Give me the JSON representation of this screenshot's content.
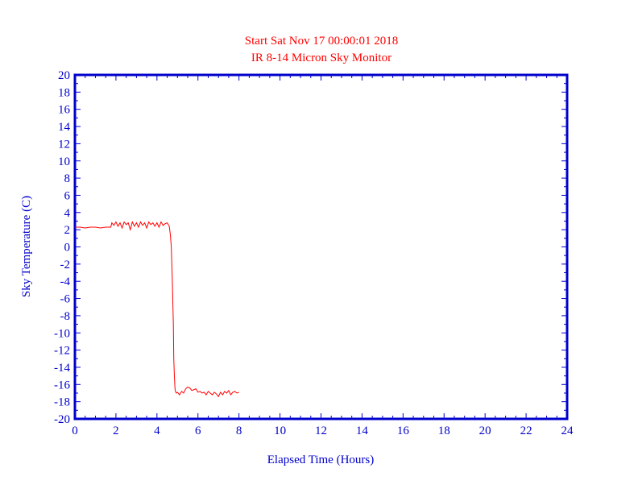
{
  "colors": {
    "axis": "#0000cc",
    "series": "#ff0000",
    "background": "#ffffff"
  },
  "chart_data": {
    "type": "line",
    "title": "Start Sat Nov 17 00:00:01 2018",
    "subtitle": "IR 8-14 Micron Sky Monitor",
    "xlabel": "Elapsed Time (Hours)",
    "ylabel": "Sky Temperature (C)",
    "xlim": [
      0,
      24
    ],
    "ylim": [
      -20,
      20
    ],
    "xticks": [
      0,
      2,
      4,
      6,
      8,
      10,
      12,
      14,
      16,
      18,
      20,
      22,
      24
    ],
    "yticks": [
      20,
      18,
      16,
      14,
      12,
      10,
      8,
      6,
      4,
      2,
      0,
      -2,
      -4,
      -6,
      -8,
      -10,
      -12,
      -14,
      -16,
      -18,
      -20
    ],
    "grid": false,
    "series": [
      {
        "x": [
          0,
          0.25,
          0.5,
          0.75,
          1.0,
          1.25,
          1.5,
          1.75,
          1.8,
          1.9,
          2.0,
          2.1,
          2.2,
          2.3,
          2.4,
          2.5,
          2.6,
          2.7,
          2.8,
          2.9,
          3.0,
          3.1,
          3.2,
          3.3,
          3.4,
          3.5,
          3.6,
          3.7,
          3.8,
          3.9,
          4.0,
          4.1,
          4.2,
          4.3,
          4.4,
          4.5,
          4.6,
          4.65,
          4.7,
          4.75,
          4.8,
          4.82,
          4.85,
          4.88,
          4.9,
          4.95,
          5.0,
          5.1,
          5.2,
          5.3,
          5.4,
          5.5,
          5.6,
          5.7,
          5.8,
          5.9,
          6.0,
          6.1,
          6.2,
          6.3,
          6.4,
          6.5,
          6.6,
          6.7,
          6.8,
          6.9,
          7.0,
          7.1,
          7.2,
          7.3,
          7.4,
          7.5,
          7.6,
          7.7,
          7.8,
          7.9,
          8.0
        ],
        "values": [
          2.3,
          2.3,
          2.2,
          2.3,
          2.3,
          2.2,
          2.3,
          2.3,
          2.8,
          2.5,
          2.9,
          2.4,
          2.8,
          2.2,
          2.9,
          2.6,
          2.8,
          2.0,
          2.9,
          2.4,
          2.8,
          2.3,
          2.9,
          2.5,
          2.8,
          2.2,
          2.9,
          2.6,
          2.8,
          2.4,
          2.8,
          2.3,
          2.9,
          2.5,
          2.7,
          2.8,
          2.4,
          1.5,
          0.0,
          -4.0,
          -9.0,
          -13.0,
          -15.0,
          -16.5,
          -16.8,
          -17.0,
          -16.9,
          -17.2,
          -16.8,
          -17.0,
          -16.5,
          -16.3,
          -16.4,
          -16.7,
          -16.6,
          -16.5,
          -16.9,
          -16.8,
          -17.0,
          -16.9,
          -17.2,
          -16.8,
          -17.0,
          -17.2,
          -16.9,
          -17.1,
          -17.4,
          -16.9,
          -17.2,
          -16.8,
          -17.0,
          -16.7,
          -17.2,
          -16.9,
          -16.8,
          -17.0,
          -16.9
        ]
      }
    ]
  }
}
